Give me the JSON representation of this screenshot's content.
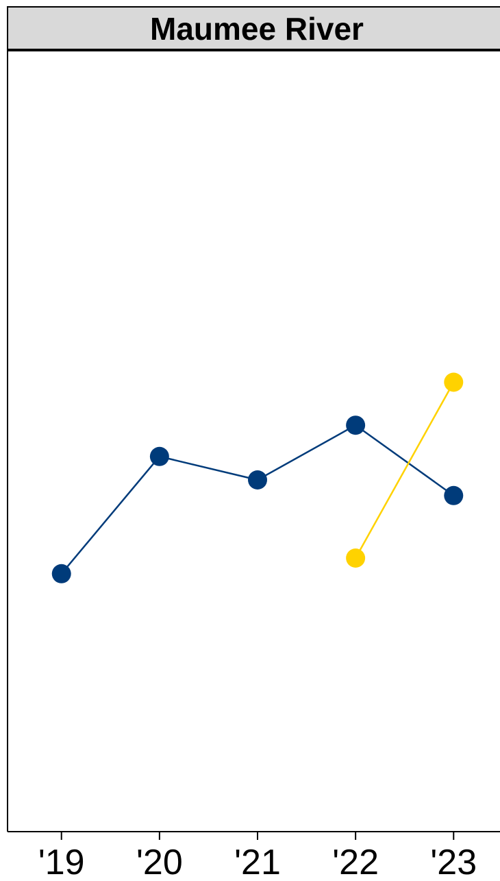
{
  "chart_data": {
    "type": "line",
    "title": "Maumee River",
    "xlabel": "",
    "ylabel": "",
    "x": [
      "'19",
      "'20",
      "'21",
      "'22",
      "'23"
    ],
    "xlim": [
      -0.55,
      4.55
    ],
    "ylim": [
      0,
      1
    ],
    "grid": false,
    "legend": "none",
    "series": [
      {
        "color": "#003B7A",
        "values": [
          0.33,
          0.48,
          0.45,
          0.52,
          0.43
        ]
      },
      {
        "color": "#FFD200",
        "values": [
          null,
          null,
          null,
          0.35,
          0.575
        ]
      }
    ]
  },
  "colors": {
    "strip_fill": "#D9D9D9",
    "panel_border": "#000000"
  }
}
